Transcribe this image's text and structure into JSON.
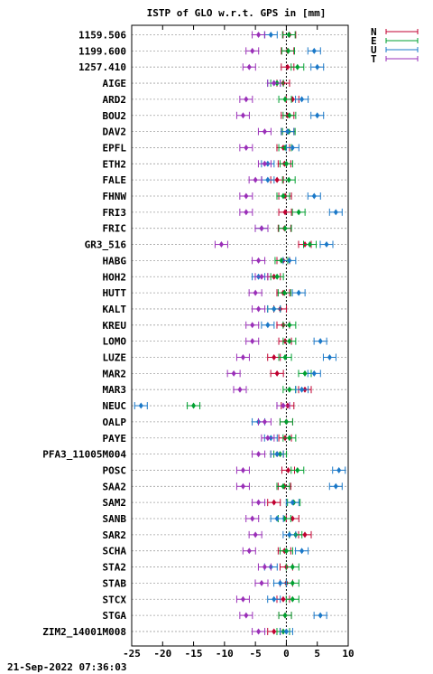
{
  "chart_data": {
    "type": "scatter",
    "title": "ISTP of GLO w.r.t. GPS in [mm]",
    "footer": "21-Sep-2022 07:36:03",
    "xlim": [
      -25,
      10
    ],
    "xticks": [
      "-25",
      "-20",
      "-15",
      "-10",
      "-5",
      "0",
      "5",
      "10"
    ],
    "grid": "horizontal dotted",
    "legend_position": "top-right",
    "series": [
      {
        "name": "N",
        "color": "#c00030"
      },
      {
        "name": "E",
        "color": "#00a030"
      },
      {
        "name": "U",
        "color": "#1a78c8"
      },
      {
        "name": "T",
        "color": "#9a2fb8"
      }
    ],
    "stations": [
      "1159.506",
      "1199.600",
      "1257.410",
      "AIGE",
      "ARD2",
      "BOU2",
      "DAV2",
      "EPFL",
      "ETH2",
      "FALE",
      "FHNW",
      "FRI3",
      "FRIC",
      "GR3_516",
      "HABG",
      "HOH2",
      "HUTT",
      "KALT",
      "KREU",
      "LOMO",
      "LUZE",
      "MAR2",
      "MAR3",
      "NEUC",
      "OALP",
      "PAYE",
      "PFA3_11005M004",
      "POSC",
      "SAA2",
      "SAM2",
      "SANB",
      "SAR2",
      "SCHA",
      "STA2",
      "STAB",
      "STCX",
      "STGA",
      "ZIM2_14001M008"
    ],
    "values": [
      [
        0.5,
        0.4,
        -2.5,
        -4.5
      ],
      [
        0.2,
        0.3,
        4.5,
        -5.5
      ],
      [
        0.2,
        1.8,
        5.0,
        -6.0
      ],
      [
        -0.5,
        -1.5,
        -2.0,
        -2.0
      ],
      [
        1.0,
        -0.2,
        2.5,
        -6.5
      ],
      [
        0.2,
        0.5,
        5.0,
        -7.0
      ],
      [
        0.2,
        0.4,
        0.2,
        -3.5
      ],
      [
        -0.5,
        -0.2,
        1.0,
        -6.5
      ],
      [
        -0.3,
        0.0,
        -3.0,
        -3.5
      ],
      [
        -1.5,
        0.4,
        -3.0,
        -5.0
      ],
      [
        -0.2,
        -0.5,
        4.5,
        -6.5
      ],
      [
        -0.2,
        2.0,
        8.0,
        -6.5
      ],
      [
        -0.3,
        -0.2,
        -4.0,
        -4.0
      ],
      [
        3.0,
        3.8,
        6.5,
        -10.5
      ],
      [
        -0.5,
        -0.8,
        0.5,
        -4.5
      ],
      [
        -2.0,
        -1.5,
        -4.5,
        -4.0
      ],
      [
        -0.5,
        -0.3,
        2.0,
        -5.0
      ],
      [
        -1.0,
        -2.0,
        -2.0,
        -4.5
      ],
      [
        -0.5,
        0.5,
        -3.0,
        -5.5
      ],
      [
        -0.2,
        0.5,
        5.5,
        -5.5
      ],
      [
        -2.0,
        -0.2,
        7.0,
        -7.0
      ],
      [
        -1.5,
        3.0,
        4.5,
        -8.5
      ],
      [
        3.0,
        0.5,
        2.5,
        -7.5
      ],
      [
        0.2,
        -15.0,
        -23.5,
        -0.5
      ],
      [
        0.0,
        0.0,
        -4.5,
        -3.5
      ],
      [
        -0.2,
        0.5,
        -2.5,
        -3.0
      ],
      [
        -1.5,
        -1.0,
        -1.5,
        -4.5
      ],
      [
        0.3,
        1.8,
        8.5,
        -7.0
      ],
      [
        -0.3,
        -0.5,
        8.0,
        -7.0
      ],
      [
        -2.0,
        1.2,
        1.0,
        -4.5
      ],
      [
        1.0,
        -0.3,
        -1.5,
        -5.5
      ],
      [
        3.0,
        1.5,
        0.5,
        -5.0
      ],
      [
        -0.3,
        0.0,
        2.5,
        -6.0
      ],
      [
        0.0,
        1.0,
        -2.5,
        -3.5
      ],
      [
        0.0,
        1.0,
        -1.0,
        -4.0
      ],
      [
        -0.5,
        1.0,
        -2.0,
        -7.0
      ],
      [
        -0.2,
        -0.2,
        5.5,
        -6.5
      ],
      [
        -2.0,
        -0.5,
        0.0,
        -4.5
      ]
    ]
  }
}
